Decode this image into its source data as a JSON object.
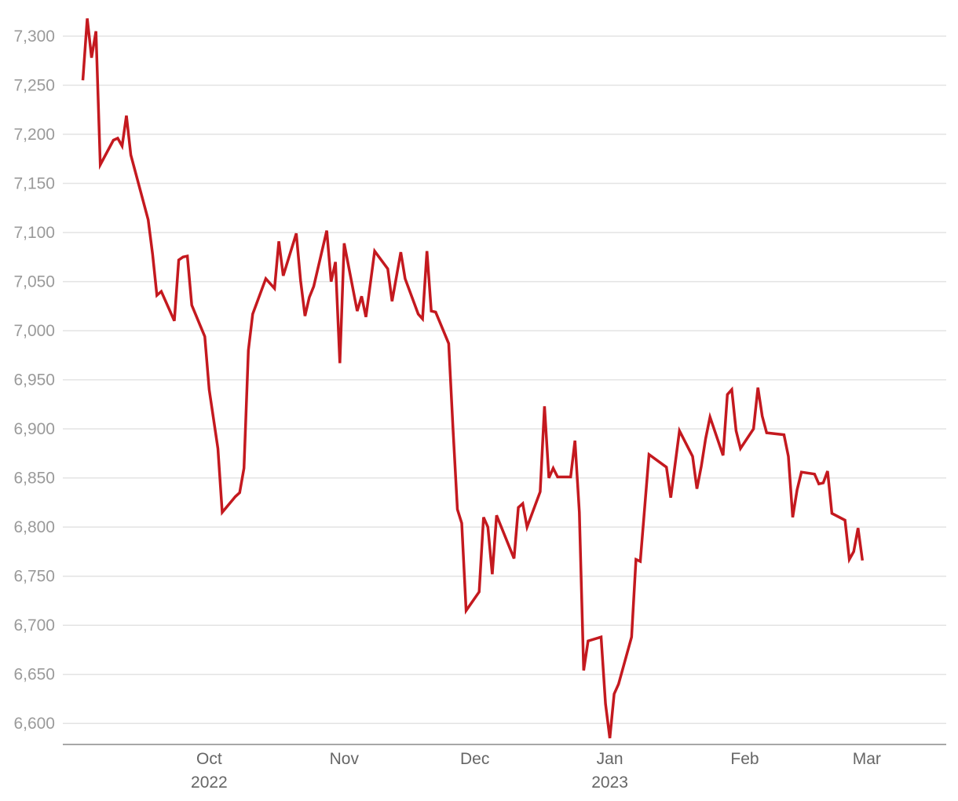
{
  "chart_data": {
    "type": "line",
    "title": "",
    "xlabel": "",
    "ylabel": "",
    "grid": true,
    "ylim": [
      6585,
      7320
    ],
    "yticks": [
      {
        "value": 6600,
        "label": "6,600"
      },
      {
        "value": 6650,
        "label": "6,650"
      },
      {
        "value": 6700,
        "label": "6,700"
      },
      {
        "value": 6750,
        "label": "6,750"
      },
      {
        "value": 6800,
        "label": "6,800"
      },
      {
        "value": 6850,
        "label": "6,850"
      },
      {
        "value": 6900,
        "label": "6,900"
      },
      {
        "value": 6950,
        "label": "6,950"
      },
      {
        "value": 7000,
        "label": "7,000"
      },
      {
        "value": 7050,
        "label": "7,050"
      },
      {
        "value": 7100,
        "label": "7,100"
      },
      {
        "value": 7150,
        "label": "7,150"
      },
      {
        "value": 7200,
        "label": "7,200"
      },
      {
        "value": 7250,
        "label": "7,250"
      },
      {
        "value": 7300,
        "label": "7,300"
      }
    ],
    "xlim": [
      "2022-09-01",
      "2023-03-16"
    ],
    "xticks": [
      {
        "date": "2022-10-01",
        "label": "Oct",
        "sublabel": "2022"
      },
      {
        "date": "2022-11-01",
        "label": "Nov",
        "sublabel": ""
      },
      {
        "date": "2022-12-01",
        "label": "Dec",
        "sublabel": ""
      },
      {
        "date": "2023-01-01",
        "label": "Jan",
        "sublabel": "2023"
      },
      {
        "date": "2023-02-01",
        "label": "Feb",
        "sublabel": ""
      },
      {
        "date": "2023-03-01",
        "label": "Mar",
        "sublabel": ""
      }
    ],
    "series": [
      {
        "name": "",
        "color": "#c4191f",
        "points": [
          [
            "2022-09-02",
            7255
          ],
          [
            "2022-09-03",
            7318
          ],
          [
            "2022-09-04",
            7278
          ],
          [
            "2022-09-05",
            7305
          ],
          [
            "2022-09-06",
            7169
          ],
          [
            "2022-09-09",
            7194
          ],
          [
            "2022-09-10",
            7196
          ],
          [
            "2022-09-11",
            7188
          ],
          [
            "2022-09-12",
            7219
          ],
          [
            "2022-09-13",
            7179
          ],
          [
            "2022-09-17",
            7113
          ],
          [
            "2022-09-18",
            7078
          ],
          [
            "2022-09-19",
            7036
          ],
          [
            "2022-09-20",
            7040
          ],
          [
            "2022-09-23",
            7010
          ],
          [
            "2022-09-24",
            7072
          ],
          [
            "2022-09-25",
            7075
          ],
          [
            "2022-09-26",
            7076
          ],
          [
            "2022-09-27",
            7026
          ],
          [
            "2022-09-30",
            6994
          ],
          [
            "2022-10-01",
            6940
          ],
          [
            "2022-10-03",
            6880
          ],
          [
            "2022-10-04",
            6815
          ],
          [
            "2022-10-07",
            6831
          ],
          [
            "2022-10-08",
            6835
          ],
          [
            "2022-10-09",
            6860
          ],
          [
            "2022-10-10",
            6980
          ],
          [
            "2022-10-11",
            7017
          ],
          [
            "2022-10-14",
            7053
          ],
          [
            "2022-10-16",
            7043
          ],
          [
            "2022-10-17",
            7091
          ],
          [
            "2022-10-18",
            7056
          ],
          [
            "2022-10-21",
            7099
          ],
          [
            "2022-10-22",
            7051
          ],
          [
            "2022-10-23",
            7015
          ],
          [
            "2022-10-24",
            7034
          ],
          [
            "2022-10-25",
            7045
          ],
          [
            "2022-10-28",
            7102
          ],
          [
            "2022-10-29",
            7050
          ],
          [
            "2022-10-30",
            7070
          ],
          [
            "2022-10-31",
            6967
          ],
          [
            "2022-11-01",
            7089
          ],
          [
            "2022-11-04",
            7020
          ],
          [
            "2022-11-05",
            7035
          ],
          [
            "2022-11-06",
            7014
          ],
          [
            "2022-11-08",
            7081
          ],
          [
            "2022-11-11",
            7063
          ],
          [
            "2022-11-12",
            7030
          ],
          [
            "2022-11-14",
            7080
          ],
          [
            "2022-11-15",
            7053
          ],
          [
            "2022-11-18",
            7017
          ],
          [
            "2022-11-19",
            7012
          ],
          [
            "2022-11-20",
            7081
          ],
          [
            "2022-11-21",
            7020
          ],
          [
            "2022-11-22",
            7019
          ],
          [
            "2022-11-25",
            6987
          ],
          [
            "2022-11-26",
            6900
          ],
          [
            "2022-11-27",
            6818
          ],
          [
            "2022-11-28",
            6804
          ],
          [
            "2022-11-29",
            6715
          ],
          [
            "2022-12-02",
            6734
          ],
          [
            "2022-12-03",
            6810
          ],
          [
            "2022-12-04",
            6800
          ],
          [
            "2022-12-05",
            6752
          ],
          [
            "2022-12-06",
            6812
          ],
          [
            "2022-12-10",
            6768
          ],
          [
            "2022-12-11",
            6820
          ],
          [
            "2022-12-12",
            6824
          ],
          [
            "2022-12-13",
            6800
          ],
          [
            "2022-12-16",
            6836
          ],
          [
            "2022-12-17",
            6923
          ],
          [
            "2022-12-18",
            6850
          ],
          [
            "2022-12-19",
            6860
          ],
          [
            "2022-12-20",
            6851
          ],
          [
            "2022-12-23",
            6851
          ],
          [
            "2022-12-24",
            6888
          ],
          [
            "2022-12-25",
            6815
          ],
          [
            "2022-12-26",
            6654
          ],
          [
            "2022-12-27",
            6684
          ],
          [
            "2022-12-30",
            6688
          ],
          [
            "2022-12-31",
            6620
          ],
          [
            "2023-01-01",
            6585
          ],
          [
            "2023-01-02",
            6630
          ],
          [
            "2023-01-03",
            6640
          ],
          [
            "2023-01-06",
            6688
          ],
          [
            "2023-01-07",
            6767
          ],
          [
            "2023-01-08",
            6765
          ],
          [
            "2023-01-10",
            6874
          ],
          [
            "2023-01-14",
            6861
          ],
          [
            "2023-01-15",
            6830
          ],
          [
            "2023-01-17",
            6898
          ],
          [
            "2023-01-20",
            6872
          ],
          [
            "2023-01-21",
            6839
          ],
          [
            "2023-01-22",
            6862
          ],
          [
            "2023-01-23",
            6890
          ],
          [
            "2023-01-24",
            6912
          ],
          [
            "2023-01-27",
            6873
          ],
          [
            "2023-01-28",
            6935
          ],
          [
            "2023-01-29",
            6940
          ],
          [
            "2023-01-30",
            6898
          ],
          [
            "2023-01-31",
            6880
          ],
          [
            "2023-02-03",
            6900
          ],
          [
            "2023-02-04",
            6942
          ],
          [
            "2023-02-05",
            6913
          ],
          [
            "2023-02-06",
            6896
          ],
          [
            "2023-02-10",
            6894
          ],
          [
            "2023-02-11",
            6872
          ],
          [
            "2023-02-12",
            6810
          ],
          [
            "2023-02-13",
            6838
          ],
          [
            "2023-02-14",
            6856
          ],
          [
            "2023-02-17",
            6854
          ],
          [
            "2023-02-18",
            6844
          ],
          [
            "2023-02-19",
            6845
          ],
          [
            "2023-02-20",
            6857
          ],
          [
            "2023-02-21",
            6814
          ],
          [
            "2023-02-24",
            6807
          ],
          [
            "2023-02-25",
            6767
          ],
          [
            "2023-02-26",
            6775
          ],
          [
            "2023-02-27",
            6799
          ],
          [
            "2023-02-28",
            6766
          ]
        ]
      }
    ]
  }
}
